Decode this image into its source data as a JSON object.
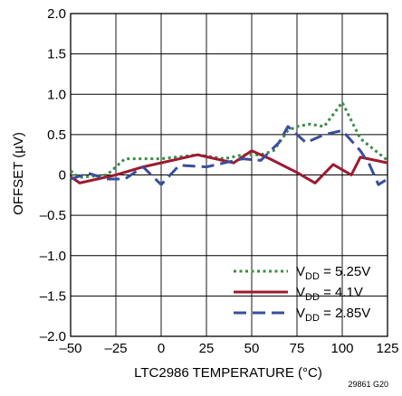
{
  "chart_data": {
    "type": "line",
    "xlabel": "LTC2986 TEMPERATURE (°C)",
    "ylabel": "OFFSET (µV)",
    "xlim": [
      -50,
      125
    ],
    "ylim": [
      -2.0,
      2.0
    ],
    "xticks": [
      -50,
      -25,
      0,
      25,
      50,
      75,
      100,
      125
    ],
    "xtick_labels": [
      "–50",
      "–25",
      "0",
      "25",
      "50",
      "75",
      "100",
      "125"
    ],
    "yticks": [
      -2.0,
      -1.5,
      -1.0,
      -0.5,
      0,
      0.5,
      1.0,
      1.5,
      2.0
    ],
    "ytick_labels": [
      "–2.0",
      "–1.5",
      "–1.0",
      "–0.5",
      "0",
      "0.5",
      "1.0",
      "1.5",
      "2.0"
    ],
    "grid": true,
    "legend_position": "bottom-right",
    "series": [
      {
        "name_main": "V",
        "name_sub": "DD",
        "name_rest": " = 5.25V",
        "color": "#3c8c46",
        "style": "dotted",
        "x": [
          -50,
          -45,
          -30,
          -20,
          0,
          20,
          35,
          45,
          55,
          62,
          70,
          75,
          82,
          90,
          100,
          110,
          125
        ],
        "y": [
          0.05,
          -0.03,
          0.0,
          0.2,
          0.2,
          0.25,
          0.2,
          0.25,
          0.25,
          0.3,
          0.55,
          0.6,
          0.63,
          0.6,
          0.9,
          0.45,
          0.18
        ]
      },
      {
        "name_main": "V",
        "name_sub": "DD",
        "name_rest": " = 4.1V",
        "color": "#9b1b30",
        "style": "solid",
        "x": [
          -50,
          -45,
          -25,
          -10,
          0,
          20,
          40,
          50,
          60,
          75,
          85,
          95,
          105,
          110,
          125
        ],
        "y": [
          -0.02,
          -0.1,
          0.0,
          0.1,
          0.15,
          0.25,
          0.15,
          0.3,
          0.2,
          0.03,
          -0.1,
          0.13,
          0.0,
          0.22,
          0.15
        ]
      },
      {
        "name_main": "V",
        "name_sub": "DD",
        "name_rest": " = 2.85V",
        "color": "#3a4f9c",
        "style": "dashed",
        "x": [
          -50,
          -40,
          -30,
          -20,
          -10,
          0,
          10,
          25,
          45,
          55,
          65,
          70,
          80,
          90,
          100,
          110,
          115,
          120,
          125
        ],
        "y": [
          -0.05,
          0.02,
          -0.05,
          -0.05,
          0.1,
          -0.12,
          0.12,
          0.1,
          0.2,
          0.18,
          0.4,
          0.6,
          0.4,
          0.5,
          0.55,
          0.3,
          0.13,
          -0.12,
          -0.05
        ]
      }
    ]
  },
  "figure_id": "29861 G20"
}
